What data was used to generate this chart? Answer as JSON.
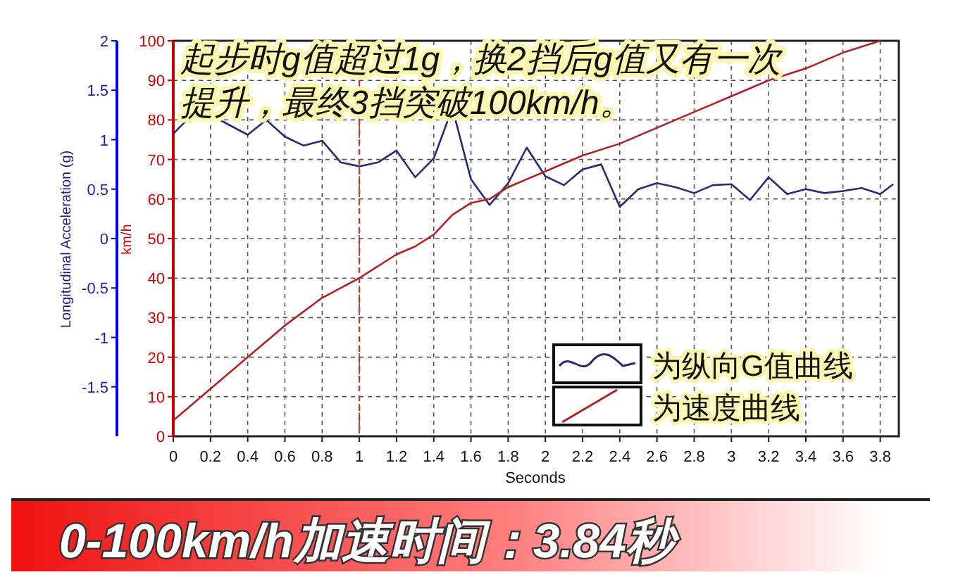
{
  "chart_data": {
    "type": "line",
    "title": "0-100km/h加速时间：3.84秒",
    "xlabel": "Seconds",
    "ylabel": "km/h",
    "y2label": "Longitudinal Acceleration (g)",
    "annotations": [
      "起步时g值超过1g，换2挡后g值又有一次提升，最终3挡突破100km/h。"
    ],
    "xlim": [
      0,
      3.9
    ],
    "xticks": [
      0,
      0.2,
      0.4,
      0.6,
      0.8,
      1,
      1.2,
      1.4,
      1.6,
      1.8,
      2,
      2.2,
      2.4,
      2.6,
      2.8,
      3,
      3.2,
      3.4,
      3.6,
      3.8
    ],
    "ylim": [
      0,
      100
    ],
    "yticks": [
      0,
      10,
      20,
      30,
      40,
      50,
      60,
      70,
      80,
      90,
      100
    ],
    "y2lim": [
      -2,
      2
    ],
    "y2ticks": [
      -1.5,
      -1,
      -0.5,
      0,
      0.5,
      1,
      1.5,
      2
    ],
    "grid": true,
    "legend": "bottom right",
    "line_style": "solid",
    "marker": "none",
    "ref_lines": [
      {
        "axis": "x",
        "value": 1,
        "color": "#cc3333",
        "line_style": "dashed"
      }
    ],
    "series": [
      {
        "name": "为纵向G值曲线",
        "color": "#2a2a72",
        "axis": "y2",
        "x": [
          0,
          0.1,
          0.2,
          0.4,
          0.5,
          0.6,
          0.7,
          0.8,
          0.9,
          1,
          1.1,
          1.2,
          1.3,
          1.4,
          1.5,
          1.6,
          1.7,
          1.8,
          1.9,
          2,
          2.1,
          2.2,
          2.3,
          2.4,
          2.5,
          2.6,
          2.7,
          2.8,
          2.9,
          3,
          3.1,
          3.2,
          3.3,
          3.4,
          3.5,
          3.6,
          3.7,
          3.8,
          3.87
        ],
        "values": [
          1.06,
          1.25,
          1.25,
          1.05,
          1.2,
          1.03,
          0.94,
          0.99,
          0.77,
          0.73,
          0.77,
          0.89,
          0.62,
          0.81,
          1.32,
          0.6,
          0.34,
          0.56,
          0.92,
          0.63,
          0.54,
          0.7,
          0.75,
          0.32,
          0.5,
          0.56,
          0.52,
          0.46,
          0.54,
          0.55,
          0.39,
          0.62,
          0.45,
          0.5,
          0.46,
          0.48,
          0.51,
          0.45,
          0.55
        ]
      },
      {
        "name": "为速度曲线",
        "color": "#b22222",
        "x": [
          0,
          0.2,
          0.4,
          0.6,
          0.8,
          1,
          1.2,
          1.3,
          1.4,
          1.5,
          1.6,
          1.7,
          1.8,
          2,
          2.2,
          2.4,
          2.6,
          2.8,
          3,
          3.2,
          3.4,
          3.6,
          3.8
        ],
        "values": [
          4,
          12,
          20,
          28,
          35,
          40,
          46,
          48,
          51,
          56,
          59,
          60,
          63,
          67,
          71,
          74,
          78,
          82,
          86,
          90,
          93,
          97,
          100
        ]
      }
    ]
  }
}
